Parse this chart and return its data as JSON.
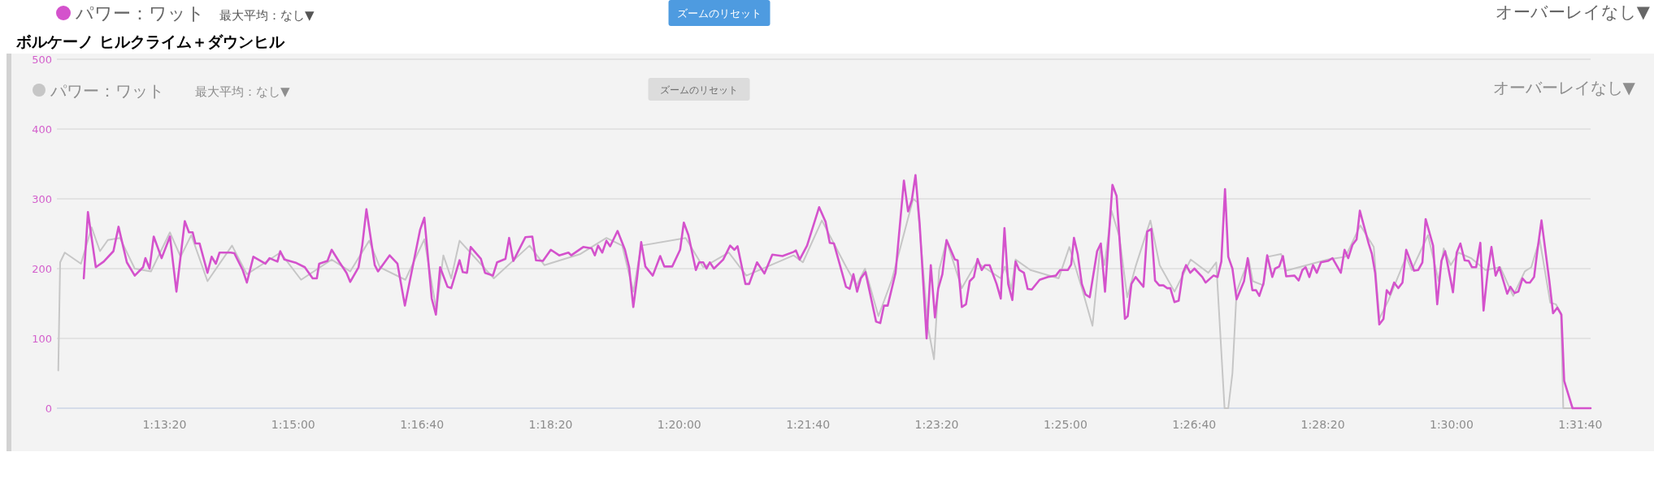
{
  "chart_data": {
    "type": "line",
    "title": "ボルケーノ ヒルクライム＋ダウンヒル",
    "xlim": [
      1.199,
      1.53
    ],
    "ylim": [
      0,
      500
    ],
    "xticks": [
      {
        "value": 1.22222,
        "label": "1:13:20"
      },
      {
        "value": 1.25,
        "label": "1:15:00"
      },
      {
        "value": 1.27778,
        "label": "1:16:40"
      },
      {
        "value": 1.30556,
        "label": "1:18:20"
      },
      {
        "value": 1.33333,
        "label": "1:20:00"
      },
      {
        "value": 1.36111,
        "label": "1:21:40"
      },
      {
        "value": 1.38889,
        "label": "1:23:20"
      },
      {
        "value": 1.41667,
        "label": "1:25:00"
      },
      {
        "value": 1.44444,
        "label": "1:26:40"
      },
      {
        "value": 1.47222,
        "label": "1:28:20"
      },
      {
        "value": 1.5,
        "label": "1:30:00"
      },
      {
        "value": 1.52778,
        "label": "1:31:40"
      }
    ],
    "yticks": [
      0,
      100,
      200,
      300,
      400,
      500
    ],
    "grid": "y",
    "legend": "top left",
    "annotations": [
      "最大平均：なし▼",
      "ズームのリセット",
      "オーバーレイなし▼",
      "最大平均：なし▼",
      "ズームのリセット",
      "オーバーレイなし▼"
    ],
    "series": [
      {
        "name": "パワー：ワット",
        "color": "#d452cc",
        "x": [
          1.2048,
          1.2057,
          1.2074,
          1.2091,
          1.2112,
          1.2123,
          1.2141,
          1.2158,
          1.2176,
          1.2181,
          1.219,
          1.2199,
          1.2216,
          1.2234,
          1.2248,
          1.2266,
          1.2275,
          1.2283,
          1.2289,
          1.2298,
          1.2315,
          1.2324,
          1.2333,
          1.2341,
          1.2365,
          1.2373,
          1.2391,
          1.24,
          1.2414,
          1.244,
          1.2449,
          1.2466,
          1.2472,
          1.2481,
          1.2507,
          1.2525,
          1.2542,
          1.2551,
          1.2556,
          1.2574,
          1.2583,
          1.26,
          1.2615,
          1.2623,
          1.2641,
          1.2649,
          1.2658,
          1.2676,
          1.2683,
          1.2708,
          1.2725,
          1.2741,
          1.2774,
          1.2783,
          1.2799,
          1.2808,
          1.2817,
          1.2833,
          1.2841,
          1.2859,
          1.2866,
          1.2875,
          1.2883,
          1.2905,
          1.2914,
          1.2931,
          1.294,
          1.2958,
          1.2966,
          1.2975,
          1.3001,
          1.3016,
          1.3024,
          1.3039,
          1.3056,
          1.3074,
          1.3094,
          1.31,
          1.3126,
          1.3144,
          1.3151,
          1.3158,
          1.3167,
          1.3176,
          1.3184,
          1.32,
          1.3216,
          1.3225,
          1.3234,
          1.3242,
          1.3251,
          1.326,
          1.3276,
          1.3292,
          1.3301,
          1.3318,
          1.3335,
          1.3343,
          1.3353,
          1.3369,
          1.3376,
          1.3385,
          1.3392,
          1.3399,
          1.3408,
          1.3428,
          1.3443,
          1.3452,
          1.3459,
          1.3476,
          1.3484,
          1.3501,
          1.3517,
          1.3534,
          1.3556,
          1.358,
          1.3585,
          1.3593,
          1.3609,
          1.3635,
          1.3649,
          1.3658,
          1.3667,
          1.3693,
          1.3701,
          1.3709,
          1.3717,
          1.3725,
          1.3735,
          1.3758,
          1.3767,
          1.3775,
          1.3783,
          1.38,
          1.3809,
          1.3818,
          1.3827,
          1.3835,
          1.3843,
          1.3852,
          1.3867,
          1.3876,
          1.3885,
          1.3892,
          1.3901,
          1.391,
          1.3928,
          1.3934,
          1.3943,
          1.3952,
          1.396,
          1.3969,
          1.3977,
          1.3986,
          1.3993,
          1.4003,
          1.4018,
          1.4027,
          1.4035,
          1.4043,
          1.4052,
          1.4059,
          1.4067,
          1.4077,
          1.4085,
          1.4094,
          1.4111,
          1.4129,
          1.4146,
          1.4155,
          1.4172,
          1.4179,
          1.4185,
          1.4193,
          1.4202,
          1.421,
          1.4219,
          1.4235,
          1.4243,
          1.4252,
          1.4268,
          1.4277,
          1.4295,
          1.4301,
          1.4309,
          1.4318,
          1.4335,
          1.4343,
          1.4352,
          1.436,
          1.4369,
          1.4378,
          1.4386,
          1.4393,
          1.4402,
          1.4411,
          1.442,
          1.4427,
          1.4436,
          1.4445,
          1.4462,
          1.4469,
          1.4486,
          1.4495,
          1.4503,
          1.4511,
          1.4518,
          1.4527,
          1.4536,
          1.4552,
          1.456,
          1.457,
          1.4578,
          1.4585,
          1.4594,
          1.4602,
          1.4613,
          1.4619,
          1.4628,
          1.4636,
          1.4643,
          1.4661,
          1.467,
          1.4678,
          1.4685,
          1.4693,
          1.4701,
          1.4709,
          1.4718,
          1.4733,
          1.4743,
          1.4761,
          1.4769,
          1.4777,
          1.4786,
          1.4795,
          1.4802,
          1.4821,
          1.4828,
          1.4835,
          1.4844,
          1.4853,
          1.486,
          1.4867,
          1.4876,
          1.4885,
          1.4894,
          1.4902,
          1.4919,
          1.4928,
          1.4937,
          1.4944,
          1.496,
          1.4969,
          1.4978,
          1.4986,
          1.5003,
          1.5011,
          1.5019,
          1.5028,
          1.5037,
          1.5044,
          1.5053,
          1.5062,
          1.5069,
          1.5078,
          1.5086,
          1.5095,
          1.5103,
          1.512,
          1.5127,
          1.5136,
          1.5144,
          1.5153,
          1.5161,
          1.5169,
          1.5178,
          1.5185,
          1.5194,
          1.5211,
          1.5219,
          1.5228,
          1.5237,
          1.5243,
          1.5261,
          1.53
        ],
        "values": [
          186,
          281,
          202,
          210,
          225,
          260,
          209,
          190,
          202,
          215,
          200,
          246,
          215,
          246,
          167,
          268,
          252,
          252,
          236,
          236,
          194,
          217,
          207,
          223,
          223,
          222,
          198,
          180,
          217,
          207,
          215,
          210,
          225,
          213,
          208,
          202,
          186,
          186,
          207,
          211,
          227,
          209,
          194,
          181,
          202,
          233,
          285,
          205,
          196,
          219,
          207,
          147,
          256,
          273,
          157,
          134,
          202,
          174,
          172,
          212,
          195,
          194,
          231,
          214,
          194,
          190,
          209,
          214,
          244,
          211,
          245,
          246,
          212,
          211,
          227,
          219,
          223,
          219,
          231,
          229,
          219,
          233,
          223,
          240,
          232,
          254,
          227,
          202,
          145,
          186,
          238,
          203,
          190,
          218,
          203,
          203,
          227,
          266,
          248,
          198,
          209,
          209,
          200,
          209,
          200,
          213,
          233,
          227,
          232,
          178,
          178,
          209,
          193,
          220,
          218,
          224,
          226,
          213,
          233,
          288,
          267,
          237,
          236,
          174,
          171,
          192,
          167,
          186,
          195,
          124,
          122,
          147,
          147,
          194,
          260,
          326,
          282,
          298,
          334,
          264,
          100,
          205,
          130,
          171,
          192,
          241,
          213,
          212,
          145,
          149,
          182,
          188,
          214,
          198,
          205,
          205,
          178,
          157,
          258,
          178,
          155,
          210,
          198,
          194,
          171,
          170,
          184,
          188,
          190,
          198,
          198,
          206,
          244,
          221,
          178,
          163,
          159,
          225,
          236,
          167,
          320,
          304,
          128,
          132,
          178,
          188,
          174,
          253,
          257,
          183,
          176,
          176,
          172,
          172,
          152,
          154,
          194,
          205,
          194,
          200,
          188,
          180,
          190,
          188,
          210,
          314,
          217,
          200,
          156,
          182,
          215,
          169,
          169,
          161,
          179,
          219,
          188,
          200,
          203,
          218,
          189,
          190,
          183,
          198,
          202,
          188,
          205,
          194,
          209,
          211,
          215,
          194,
          227,
          215,
          234,
          242,
          283,
          236,
          221,
          194,
          120,
          128,
          169,
          163,
          180,
          172,
          180,
          227,
          197,
          198,
          209,
          271,
          233,
          149,
          211,
          225,
          166,
          223,
          236,
          212,
          211,
          202,
          202,
          237,
          140,
          196,
          231,
          190,
          202,
          164,
          174,
          165,
          167,
          186,
          180,
          180,
          188,
          225,
          269,
          182,
          136,
          144,
          134,
          39,
          0,
          0
        ]
      },
      {
        "name": "パワー：ワット",
        "color": "#c6c6c6",
        "x": [
          1.1993,
          1.1997,
          1.2007,
          1.2042,
          1.2065,
          1.2083,
          1.21,
          1.2126,
          1.2158,
          1.2193,
          1.2234,
          1.2257,
          1.228,
          1.2315,
          1.2368,
          1.24,
          1.244,
          1.2472,
          1.2517,
          1.2583,
          1.2623,
          1.2664,
          1.2687,
          1.2742,
          1.2783,
          1.2809,
          1.2824,
          1.2841,
          1.2859,
          1.2933,
          1.301,
          1.3042,
          1.312,
          1.3176,
          1.321,
          1.3234,
          1.3251,
          1.3347,
          1.3385,
          1.344,
          1.3478,
          1.358,
          1.36,
          1.3641,
          1.3693,
          1.3716,
          1.3734,
          1.3763,
          1.3792,
          1.3838,
          1.3847,
          1.387,
          1.3883,
          1.3894,
          1.391,
          1.3943,
          1.3975,
          1.4027,
          1.4036,
          1.405,
          1.4059,
          1.4091,
          1.4152,
          1.4175,
          1.4202,
          1.4225,
          1.4242,
          1.4251,
          1.4266,
          1.4283,
          1.43,
          1.4318,
          1.435,
          1.437,
          1.4402,
          1.4437,
          1.4475,
          1.4492,
          1.451,
          1.4518,
          1.4527,
          1.4536,
          1.4562,
          1.4571,
          1.4594,
          1.4603,
          1.4632,
          1.4643,
          1.4733,
          1.4771,
          1.4803,
          1.4832,
          1.4844,
          1.4864,
          1.4902,
          1.4914,
          1.4949,
          1.4972,
          1.4983,
          1.4998,
          1.5015,
          1.5042,
          1.5073,
          1.5105,
          1.5133,
          1.5158,
          1.5172,
          1.519,
          1.5213,
          1.5225,
          1.5236,
          1.5241,
          1.5259
        ],
        "values": [
          54,
          209,
          223,
          207,
          259,
          225,
          241,
          244,
          200,
          196,
          252,
          217,
          248,
          182,
          233,
          192,
          209,
          223,
          184,
          213,
          196,
          240,
          202,
          184,
          242,
          140,
          219,
          186,
          240,
          186,
          233,
          205,
          221,
          244,
          233,
          167,
          233,
          244,
          202,
          223,
          190,
          219,
          209,
          269,
          203,
          176,
          200,
          132,
          184,
          300,
          295,
          116,
          70,
          198,
          240,
          172,
          209,
          186,
          203,
          171,
          213,
          198,
          186,
          231,
          172,
          118,
          233,
          205,
          283,
          246,
          159,
          203,
          269,
          205,
          167,
          213,
          194,
          209,
          0,
          0,
          50,
          167,
          213,
          182,
          176,
          217,
          221,
          197,
          213,
          217,
          262,
          231,
          128,
          155,
          217,
          198,
          248,
          182,
          229,
          205,
          223,
          215,
          198,
          202,
          161,
          196,
          202,
          242,
          151,
          149,
          136,
          0,
          0
        ]
      }
    ]
  }
}
